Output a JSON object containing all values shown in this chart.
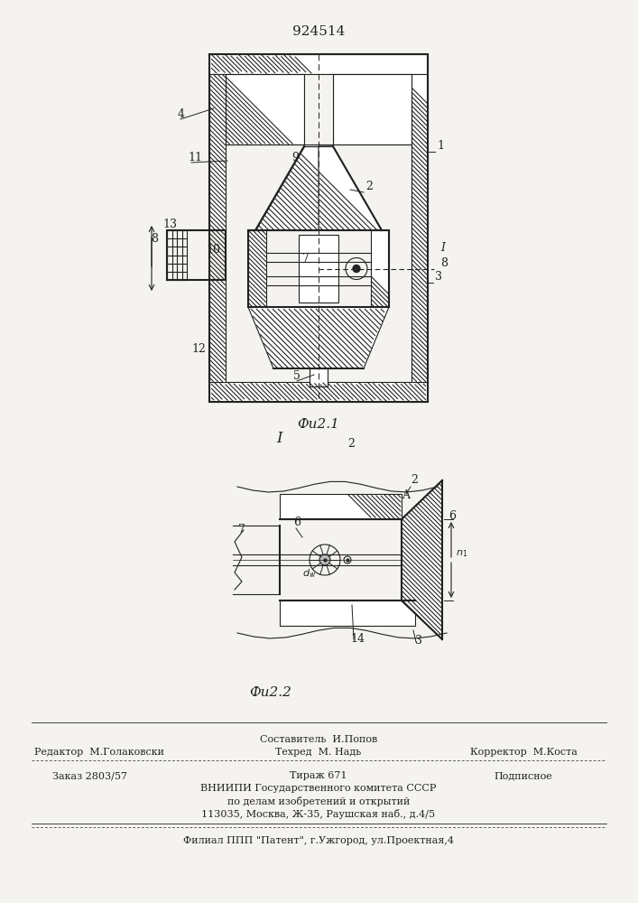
{
  "patent_number": "924514",
  "fig1_caption": "Фu2.1",
  "fig2_caption": "Фu2.2",
  "background_color": "#f5f3ef",
  "line_color": "#222222",
  "footer_lines": [
    "Составитель  И.Попов",
    "Редактор  М.Голаковски",
    "Техред  М. Надь",
    "Корректор  М.Коста",
    "Заказ 2803/57",
    "Тираж 671",
    "Подписное",
    "ВНИИПИ Государственного комитета СССР",
    "по делам изобретений и открытий",
    "113035, Москва, Ж-35, Раушская наб., д.4/5",
    "Филиал ППП \"Патент\", г.Ужгород, ул.Проектная,4"
  ]
}
